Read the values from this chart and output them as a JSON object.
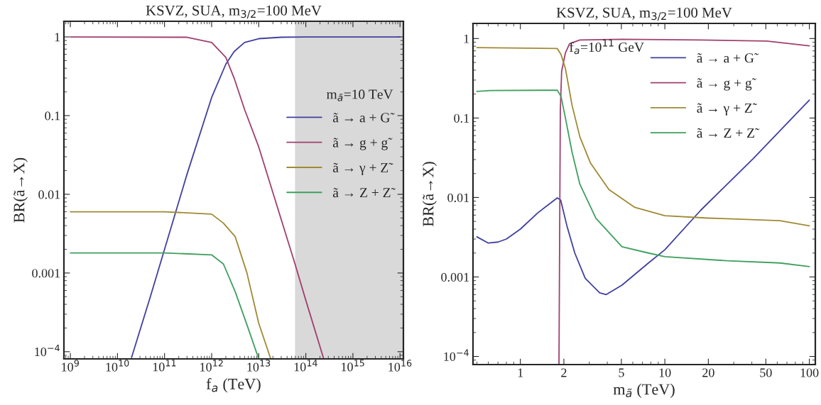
{
  "chart_data": [
    {
      "type": "line",
      "title": "KSVZ, SUA, m$_{3/2}$=100 MeV",
      "xlabel": "f$_{a}$ (TeV)",
      "ylabel": "BR(ã→X)",
      "log": "xy",
      "xlim": [
        730000000.0,
        1.18e+16
      ],
      "ylim": [
        8.1e-05,
        1.58
      ],
      "xticks": [
        {
          "value": 1000000000.0,
          "label": "10$^{9}$"
        },
        {
          "value": 10000000000.0,
          "label": "10$^{10}$"
        },
        {
          "value": 100000000000.0,
          "label": "10$^{11}$"
        },
        {
          "value": 1000000000000.0,
          "label": "10$^{12}$"
        },
        {
          "value": 10000000000000.0,
          "label": "10$^{13}$"
        },
        {
          "value": 100000000000000.0,
          "label": "10$^{14}$"
        },
        {
          "value": 1000000000000000.0,
          "label": "10$^{15}$"
        },
        {
          "value": 1e+16,
          "label": "10$^{16}$"
        }
      ],
      "yticks": [
        {
          "value": 0.0001,
          "label": "10$^{−4}$"
        },
        0.001,
        0.01,
        0.1,
        1
      ],
      "grid": false,
      "legend": "right",
      "annotations": [
        "m$_{ã}$=10 TeV"
      ],
      "bands": [
        {
          "axis": "x",
          "from": 59000000000000.0,
          "to": 1.18e+16,
          "color": "#d9d9d9"
        }
      ],
      "series": [
        {
          "name": "ã → a + G̃",
          "color": "#4040a0",
          "x": [
            20000000000.0,
            50000000000.0,
            100000000000.0,
            300000000000.0,
            1000000000000.0,
            2000000000000.0,
            3000000000000.0,
            5000000000000.0,
            10000000000000.0,
            30000000000000.0,
            100000000000000.0,
            1e+16
          ],
          "values": [
            8.5e-05,
            0.0005,
            0.002,
            0.018,
            0.17,
            0.45,
            0.65,
            0.85,
            0.95,
            0.99,
            1,
            1
          ]
        },
        {
          "name": "ã → g + g̃",
          "color": "#a0406e",
          "x": [
            1000000000.0,
            300000000000.0,
            1000000000000.0,
            2000000000000.0,
            3000000000000.0,
            5000000000000.0,
            10000000000000.0,
            59000000000000.0,
            100000000000000.0,
            240000000000000.0
          ],
          "values": [
            1,
            0.99,
            0.85,
            0.55,
            0.3,
            0.12,
            0.04,
            0.0013,
            0.00045,
            8.1e-05
          ]
        },
        {
          "name": "ã → γ + Z̃",
          "color": "#9f8a33",
          "x": [
            1000000000.0,
            100000000000.0,
            1000000000000.0,
            1780000000000.0,
            3160000000000.0,
            5620000000000.0,
            10000000000000.0,
            18000000000000.0
          ],
          "values": [
            0.006,
            0.006,
            0.0056,
            0.0043,
            0.0029,
            0.001,
            0.00023,
            8.1e-05
          ]
        },
        {
          "name": "ã → Z + Z̃",
          "color": "#3f9f5f",
          "x": [
            1000000000.0,
            100000000000.0,
            1000000000000.0,
            1780000000000.0,
            3160000000000.0,
            5620000000000.0,
            10000000000000.0
          ],
          "values": [
            0.0018,
            0.0018,
            0.0017,
            0.0013,
            0.00058,
            0.00022,
            8.1e-05
          ]
        }
      ]
    },
    {
      "type": "line",
      "title": "KSVZ, SUA, m$_{3/2}$=100 MeV",
      "xlabel": "m$_{ã}$ (TeV)",
      "ylabel": "BR(ã→X)",
      "log": "xy",
      "xlim": [
        0.47,
        110
      ],
      "ylim": [
        7.9e-05,
        1.55
      ],
      "xticks": [
        1,
        2,
        5,
        10,
        20,
        50,
        100
      ],
      "yticks": [
        {
          "value": 0.0001,
          "label": "10$^{−4}$"
        },
        0.001,
        0.01,
        0.1,
        1
      ],
      "grid": false,
      "legend": "top right",
      "annotations": [
        "f$_{a}$=10$^{11}$ GeV"
      ],
      "series": [
        {
          "name": "ã → a + G̃",
          "color": "#4040a0",
          "x": [
            0.5,
            0.6,
            0.7,
            0.8,
            1.0,
            1.32,
            1.8,
            1.9,
            2.1,
            2.38,
            2.81,
            3.54,
            3.93,
            5.05,
            7.7,
            10,
            17.7,
            41,
            100
          ],
          "values": [
            0.0032,
            0.00267,
            0.00275,
            0.003,
            0.004,
            0.0064,
            0.0099,
            0.0093,
            0.0044,
            0.002,
            0.00096,
            0.00063,
            0.0006,
            0.00079,
            0.0015,
            0.0022,
            0.0069,
            0.031,
            0.168
          ]
        },
        {
          "name": "ã → g + g̃",
          "color": "#a0406e",
          "x": [
            1.85,
            1.89,
            1.93,
            2.05,
            2.19,
            2.58,
            5.05,
            17.7,
            50.6,
            100
          ],
          "values": [
            7.9e-05,
            0.124,
            0.387,
            0.66,
            0.86,
            0.96,
            0.98,
            0.96,
            0.93,
            0.81
          ]
        },
        {
          "name": "ã → γ + Z̃",
          "color": "#9f8a33",
          "x": [
            0.5,
            1.8,
            1.91,
            2.05,
            2.28,
            2.58,
            3.06,
            4.1,
            6.2,
            10,
            20,
            27,
            62.5,
            100
          ],
          "values": [
            0.77,
            0.75,
            0.63,
            0.42,
            0.144,
            0.058,
            0.027,
            0.0126,
            0.0075,
            0.0059,
            0.0055,
            0.0054,
            0.0051,
            0.0044
          ]
        },
        {
          "name": "ã → Z + Z̃",
          "color": "#3f9f5f",
          "x": [
            0.5,
            0.62,
            1.8,
            1.91,
            2.05,
            2.28,
            2.58,
            3.33,
            5.05,
            7.7,
            10,
            27,
            62.5,
            100
          ],
          "values": [
            0.216,
            0.222,
            0.224,
            0.188,
            0.1,
            0.037,
            0.0147,
            0.0055,
            0.0024,
            0.002,
            0.0018,
            0.0016,
            0.0015,
            0.00135
          ]
        }
      ]
    }
  ]
}
